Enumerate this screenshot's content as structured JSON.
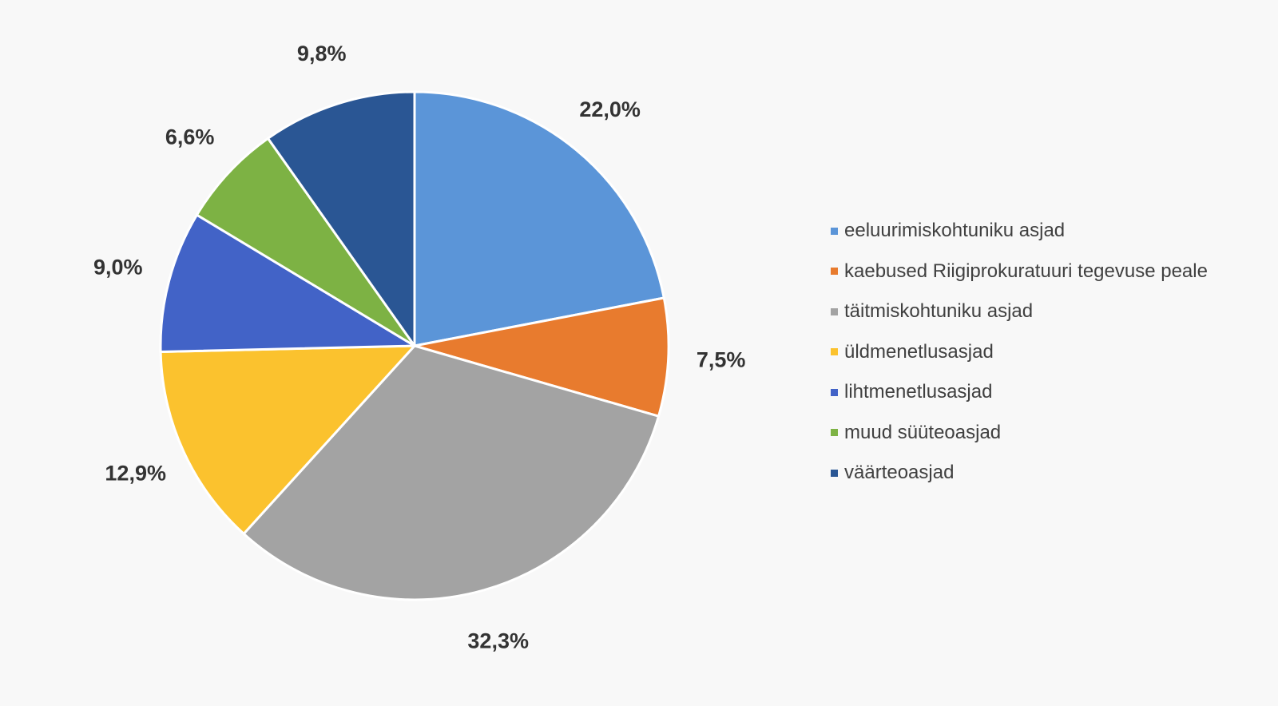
{
  "chart_data": {
    "type": "pie",
    "title": "",
    "value_format": "percent-comma-1dp",
    "start_angle_deg": 0,
    "direction": "clockwise",
    "slices": [
      {
        "name": "eeluurimiskohtuniku asjad",
        "value": 22.0,
        "label": "22,0%",
        "color": "#5b95d8"
      },
      {
        "name": "kaebused Riigiprokuratuuri tegevuse peale",
        "value": 7.5,
        "label": "7,5%",
        "color": "#e87b2e"
      },
      {
        "name": "täitmiskohtuniku asjad",
        "value": 32.3,
        "label": "32,3%",
        "color": "#a3a3a3"
      },
      {
        "name": "üldmenetlusasjad",
        "value": 12.9,
        "label": "12,9%",
        "color": "#fbc22e"
      },
      {
        "name": "lihtmenetlusasjad",
        "value": 9.0,
        "label": "9,0%",
        "color": "#4263c7"
      },
      {
        "name": "muud süüteoasjad",
        "value": 6.6,
        "label": "6,6%",
        "color": "#7db244"
      },
      {
        "name": "väärteoasjad",
        "value": 9.8,
        "label": "9,8%",
        "color": "#2a5694"
      }
    ],
    "legend": {
      "position": "right",
      "entries": [
        "eeluurimiskohtuniku asjad",
        "kaebused Riigiprokuratuuri tegevuse peale",
        "täitmiskohtuniku asjad",
        "üldmenetlusasjad",
        "lihtmenetlusasjad",
        "muud süüteoasjad",
        "väärteoasjad"
      ]
    },
    "background": "#f8f8f8",
    "slice_border_color": "#ffffff",
    "label_color": "#333333"
  }
}
